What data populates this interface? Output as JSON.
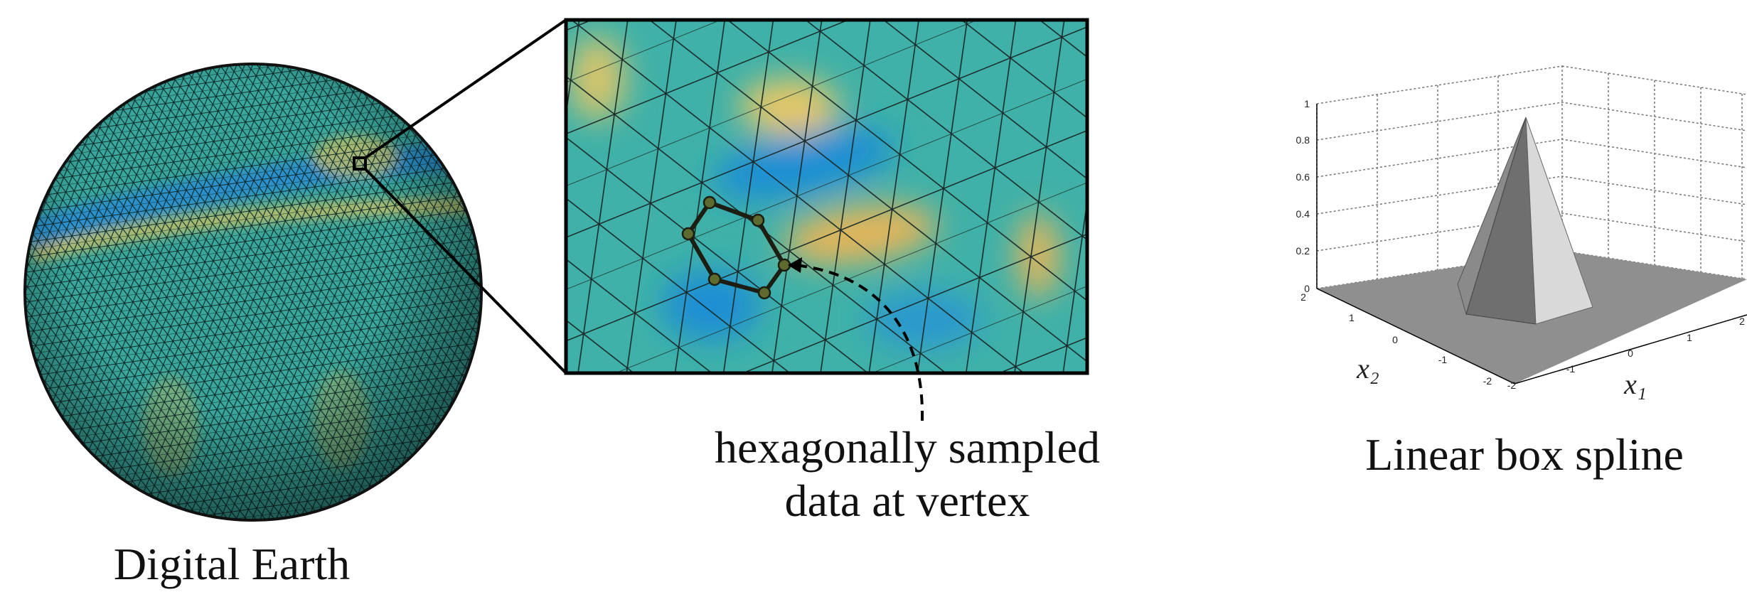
{
  "labels": {
    "digital_earth": "Digital Earth",
    "annotation": [
      "hexagonally sampled",
      "data at vertex"
    ],
    "box_spline": "Linear box spline"
  },
  "plot": {
    "z_ticks": [
      "1",
      "0.8",
      "0.6",
      "0.4",
      "0.2",
      "0"
    ],
    "x2_ticks": [
      "2",
      "1",
      "0",
      "-1",
      "-2"
    ],
    "x1_ticks": [
      "-2",
      "-1",
      "0",
      "1",
      "2"
    ],
    "x2_label": "x₂",
    "x1_label": "x₁"
  }
}
